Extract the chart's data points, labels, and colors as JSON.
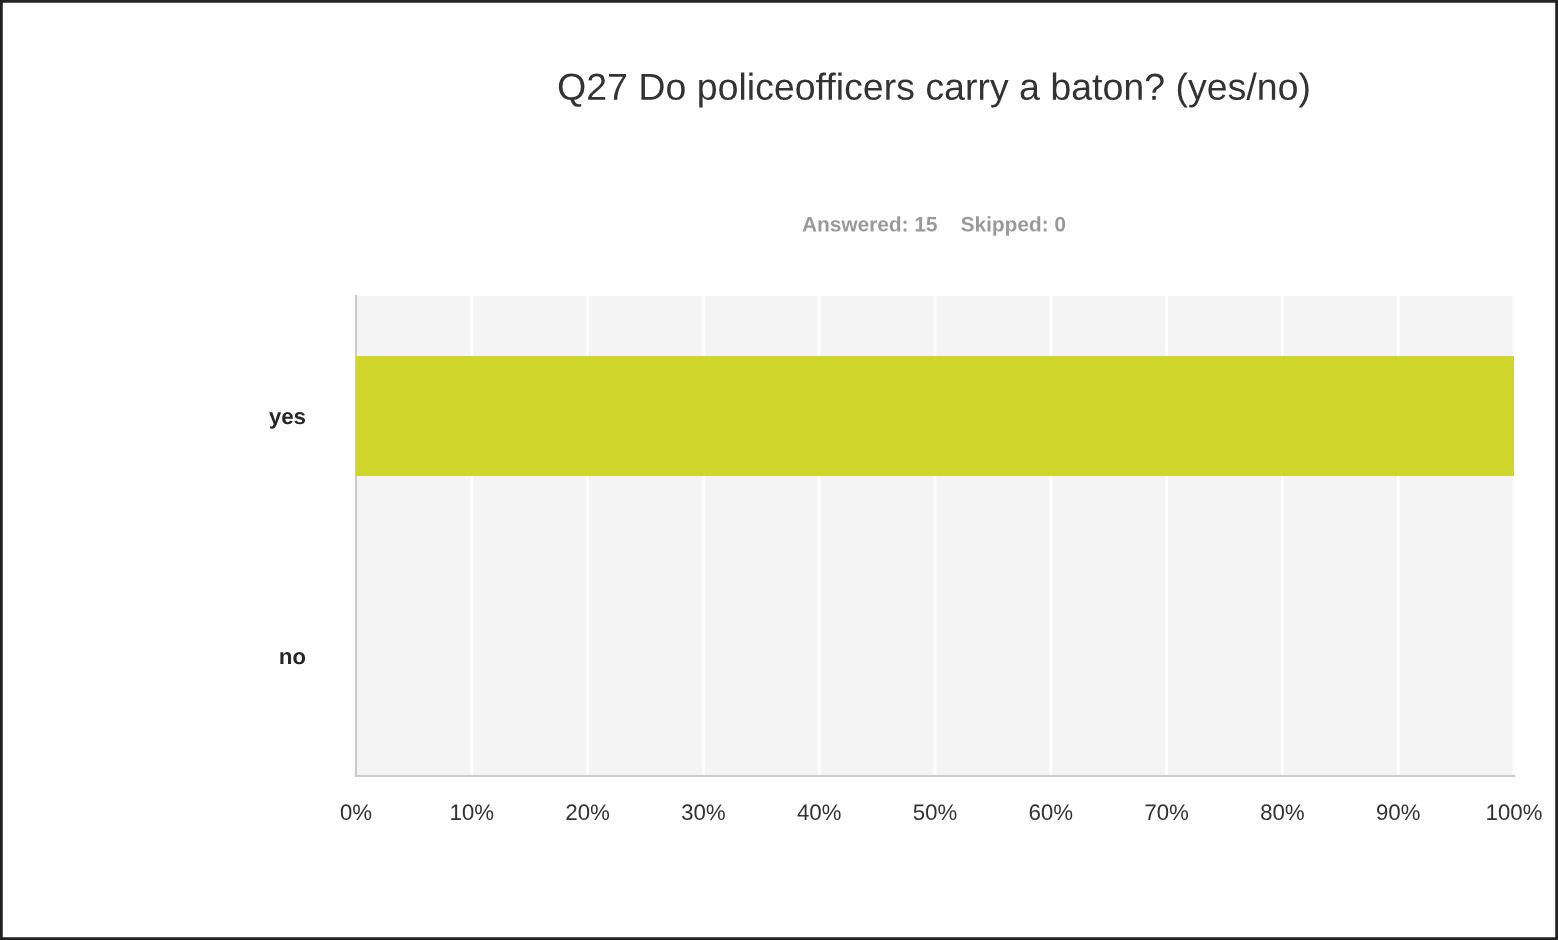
{
  "chart_data": {
    "type": "bar",
    "orientation": "horizontal",
    "title": "Q27 Do policeofficers carry a baton? (yes/no)",
    "subtitle": "Answered: 15    Skipped: 0",
    "categories": [
      "yes",
      "no"
    ],
    "series": [
      {
        "color": "#cfd52a",
        "values": [
          100,
          0
        ]
      }
    ],
    "xlim": [
      0,
      100
    ],
    "xticks": [
      {
        "value": 0,
        "label": "0%"
      },
      {
        "value": 10,
        "label": "10%"
      },
      {
        "value": 20,
        "label": "20%"
      },
      {
        "value": 30,
        "label": "30%"
      },
      {
        "value": 40,
        "label": "40%"
      },
      {
        "value": 50,
        "label": "50%"
      },
      {
        "value": 60,
        "label": "60%"
      },
      {
        "value": 70,
        "label": "70%"
      },
      {
        "value": 80,
        "label": "80%"
      },
      {
        "value": 90,
        "label": "90%"
      },
      {
        "value": 100,
        "label": "100%"
      }
    ],
    "grid": "x",
    "legend": false
  }
}
